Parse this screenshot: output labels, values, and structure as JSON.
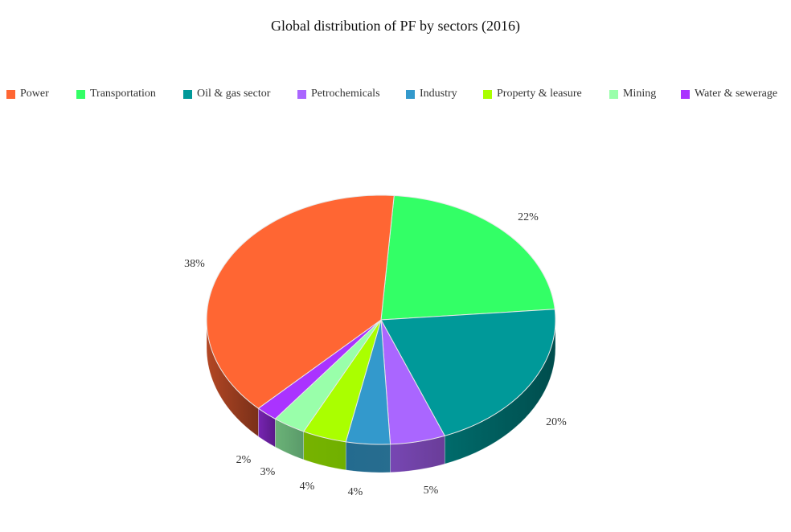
{
  "chart_data": {
    "type": "pie",
    "title": "Global distribution of PF by sectors (2016)",
    "style": "3d",
    "legend_position": "top",
    "categories": [
      "Power",
      "Transportation",
      "Oil & gas sector",
      "Petrochemicals",
      "Industry",
      "Property & leasure",
      "Mining",
      "Water & sewerage"
    ],
    "values": [
      38,
      22,
      20,
      5,
      4,
      4,
      3,
      2
    ],
    "labels": [
      "38%",
      "22%",
      "20%",
      "5%",
      "4%",
      "4%",
      "3%",
      "2%"
    ],
    "colors": [
      "#ff6633",
      "#33ff66",
      "#009999",
      "#aa66ff",
      "#3399cc",
      "#aaff00",
      "#99ffaa",
      "#aa33ff"
    ],
    "side_colors": [
      "#7a3019",
      "#1a8033",
      "#004d4d",
      "#6a3d99",
      "#276d8f",
      "#70b000",
      "#5a9a6a",
      "#5a1a88"
    ]
  },
  "title": "Global distribution of PF by sectors (2016)",
  "legend": [
    {
      "label": "Power",
      "color": "#ff6633"
    },
    {
      "label": "Transportation",
      "color": "#33ff66"
    },
    {
      "label": "Oil & gas sector",
      "color": "#009999"
    },
    {
      "label": "Petrochemicals",
      "color": "#aa66ff"
    },
    {
      "label": "Industry",
      "color": "#3399cc"
    },
    {
      "label": "Property & leasure",
      "color": "#aaff00"
    },
    {
      "label": "Mining",
      "color": "#99ffaa"
    },
    {
      "label": "Water & sewerage",
      "color": "#aa33ff"
    }
  ]
}
